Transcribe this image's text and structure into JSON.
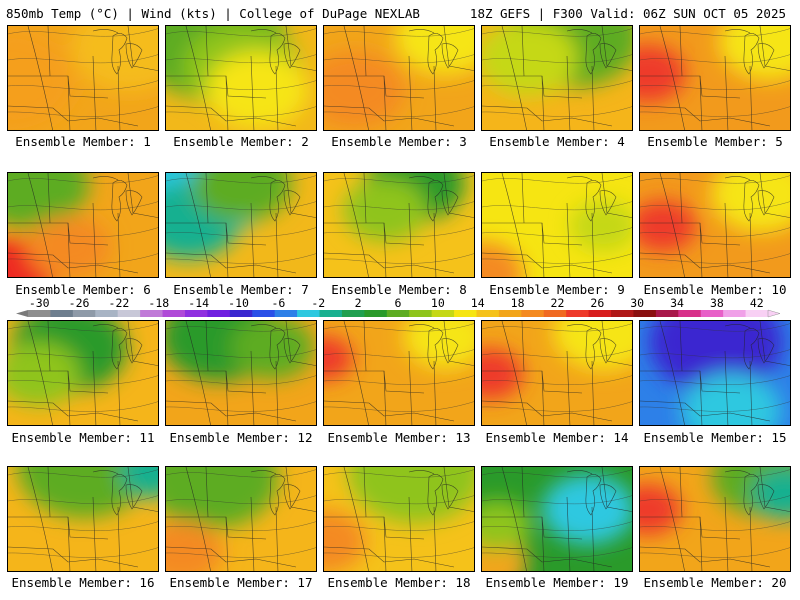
{
  "header": {
    "left": "850mb Temp (°C) | Wind (kts) | College of DuPage NEXLAB",
    "right": "18Z GEFS | F300 Valid: 06Z SUN OCT 05 2025"
  },
  "members": [
    {
      "label": "Ensemble Member: 1",
      "base": "#f2a51a",
      "regions": [
        [
          "#f59f1c",
          0.0,
          0.5,
          0.8
        ],
        [
          "#f5bc1c",
          0.8,
          0.2,
          0.7
        ]
      ]
    },
    {
      "label": "Ensemble Member: 2",
      "base": "#f2b81a",
      "regions": [
        [
          "#5dac22",
          0.3,
          0.15,
          0.9
        ],
        [
          "#8fc41b",
          0.5,
          0.4,
          0.7
        ],
        [
          "#f6e512",
          0.6,
          0.6,
          0.6
        ]
      ]
    },
    {
      "label": "Ensemble Member: 3",
      "base": "#f2a51a",
      "regions": [
        [
          "#f6e512",
          0.8,
          0.1,
          0.6
        ],
        [
          "#f48a20",
          0.2,
          0.6,
          0.6
        ]
      ]
    },
    {
      "label": "Ensemble Member: 4",
      "base": "#f5b51a",
      "regions": [
        [
          "#5dac22",
          0.6,
          0.1,
          0.8
        ],
        [
          "#c5d815",
          0.3,
          0.3,
          0.6
        ]
      ]
    },
    {
      "label": "Ensemble Member: 5",
      "base": "#f29a1c",
      "regions": [
        [
          "#ee3a2a",
          0.05,
          0.45,
          0.45
        ],
        [
          "#f6e512",
          0.85,
          0.15,
          0.6
        ]
      ]
    },
    {
      "label": "Ensemble Member: 6",
      "base": "#f2a51a",
      "regions": [
        [
          "#ee2a22",
          0.0,
          0.95,
          0.55
        ],
        [
          "#5dac22",
          0.15,
          0.1,
          0.7
        ],
        [
          "#f48a20",
          0.4,
          0.7,
          0.5
        ]
      ]
    },
    {
      "label": "Ensemble Member: 7",
      "base": "#f2b81a",
      "regions": [
        [
          "#2dc8e0",
          0.2,
          0.1,
          0.9
        ],
        [
          "#18b090",
          0.15,
          0.45,
          0.6
        ],
        [
          "#5dac22",
          0.5,
          0.1,
          0.6
        ]
      ]
    },
    {
      "label": "Ensemble Member: 8",
      "base": "#f5c21a",
      "regions": [
        [
          "#2a9a2a",
          0.6,
          0.1,
          0.6
        ],
        [
          "#8fc41b",
          0.4,
          0.35,
          0.5
        ]
      ]
    },
    {
      "label": "Ensemble Member: 9",
      "base": "#f6e512",
      "regions": [
        [
          "#f48a20",
          0.0,
          0.95,
          0.5
        ],
        [
          "#c5d815",
          0.8,
          0.5,
          0.4
        ]
      ]
    },
    {
      "label": "Ensemble Member: 10",
      "base": "#f29a1c",
      "regions": [
        [
          "#ee3a2a",
          0.15,
          0.5,
          0.4
        ],
        [
          "#f6e512",
          0.8,
          0.2,
          0.6
        ]
      ]
    },
    {
      "label": "Ensemble Member: 11",
      "base": "#f5b51a",
      "regions": [
        [
          "#2a9a2a",
          0.4,
          0.25,
          0.7
        ],
        [
          "#8fc41b",
          0.2,
          0.5,
          0.5
        ]
      ]
    },
    {
      "label": "Ensemble Member: 12",
      "base": "#f2a51a",
      "regions": [
        [
          "#2a9a2a",
          0.35,
          0.15,
          0.7
        ],
        [
          "#5dac22",
          0.7,
          0.25,
          0.5
        ]
      ]
    },
    {
      "label": "Ensemble Member: 13",
      "base": "#f2a51a",
      "regions": [
        [
          "#ee3a2a",
          0.0,
          0.35,
          0.35
        ],
        [
          "#f6e512",
          0.8,
          0.15,
          0.5
        ]
      ]
    },
    {
      "label": "Ensemble Member: 14",
      "base": "#f2a51a",
      "regions": [
        [
          "#ee3a2a",
          0.05,
          0.5,
          0.4
        ],
        [
          "#f6e512",
          0.8,
          0.1,
          0.6
        ]
      ]
    },
    {
      "label": "Ensemble Member: 15",
      "base": "#2d80e8",
      "regions": [
        [
          "#3a28d0",
          0.5,
          0.2,
          0.8
        ],
        [
          "#2dc8e0",
          0.6,
          0.85,
          0.6
        ]
      ]
    },
    {
      "label": "Ensemble Member: 16",
      "base": "#f5b51a",
      "regions": [
        [
          "#5dac22",
          0.5,
          0.0,
          0.8
        ],
        [
          "#18b090",
          0.95,
          0.05,
          0.4
        ]
      ]
    },
    {
      "label": "Ensemble Member: 17",
      "base": "#f5b51a",
      "regions": [
        [
          "#5dac22",
          0.3,
          0.1,
          0.8
        ],
        [
          "#f48a20",
          0.1,
          0.8,
          0.5
        ]
      ]
    },
    {
      "label": "Ensemble Member: 18",
      "base": "#f5c21a",
      "regions": [
        [
          "#8fc41b",
          0.6,
          0.05,
          0.8
        ],
        [
          "#f48a20",
          0.0,
          0.7,
          0.5
        ]
      ]
    },
    {
      "label": "Ensemble Member: 19",
      "base": "#2a9a2a",
      "regions": [
        [
          "#2dc8e0",
          0.7,
          0.4,
          0.55
        ],
        [
          "#f2a51a",
          0.0,
          0.9,
          0.55
        ],
        [
          "#8fc41b",
          0.1,
          0.55,
          0.4
        ]
      ]
    },
    {
      "label": "Ensemble Member: 20",
      "base": "#f2a51a",
      "regions": [
        [
          "#ee3a2a",
          0.05,
          0.4,
          0.4
        ],
        [
          "#5dac22",
          0.8,
          0.1,
          0.6
        ],
        [
          "#18b090",
          0.95,
          0.25,
          0.4
        ]
      ]
    }
  ],
  "colorbar": {
    "ticks": [
      "-30",
      "-26",
      "-22",
      "-18",
      "-14",
      "-10",
      "-6",
      "-2",
      "2",
      "6",
      "10",
      "14",
      "18",
      "22",
      "26",
      "30",
      "34",
      "38",
      "42"
    ],
    "colors": [
      "#8e8e8e",
      "#6e7e8e",
      "#8e9aa8",
      "#a8b4c4",
      "#c8c8d8",
      "#c07ad8",
      "#b04ad8",
      "#9030e0",
      "#7020e0",
      "#3a28d0",
      "#2a50e8",
      "#2d80e8",
      "#2dc8e0",
      "#18b090",
      "#20a050",
      "#2a9a2a",
      "#5dac22",
      "#8fc41b",
      "#c5d815",
      "#f6e512",
      "#f5c21a",
      "#f2a51a",
      "#f48a20",
      "#f06a22",
      "#ee3a2a",
      "#d81e1e",
      "#b01818",
      "#8a1010",
      "#a8184a",
      "#d8308a",
      "#e860c8",
      "#f0a0e8",
      "#f8d0f4"
    ]
  }
}
